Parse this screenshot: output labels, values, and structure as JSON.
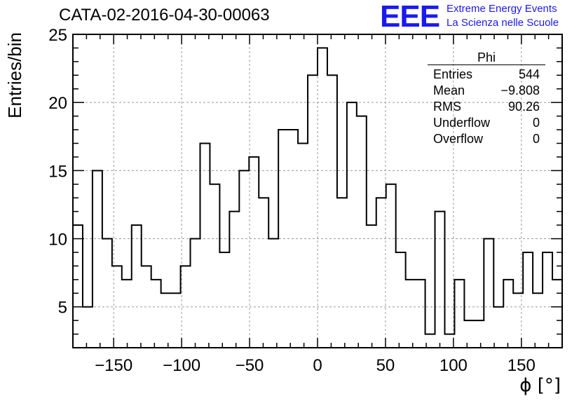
{
  "title": "CATA-02-2016-04-30-00063",
  "logo": {
    "mark": "EEE",
    "line1": "Extreme Energy Events",
    "line2": "La Scienza nelle Scuole",
    "color": "#1a1af0"
  },
  "stats_box": {
    "title": "Phi",
    "rows": [
      {
        "label": "Entries",
        "value": "544"
      },
      {
        "label": "Mean",
        "value": "−9.808"
      },
      {
        "label": "RMS",
        "value": "90.26"
      },
      {
        "label": "Underflow",
        "value": "0"
      },
      {
        "label": "Overflow",
        "value": "0"
      }
    ]
  },
  "chart_data": {
    "type": "histogram",
    "title": "CATA-02-2016-04-30-00063",
    "xlabel": "ϕ [°]",
    "ylabel": "Entries/bin",
    "xlim": [
      -180,
      180
    ],
    "ylim": [
      2,
      25
    ],
    "grid": true,
    "bin_width": 7.2,
    "bin_edges_start": -180,
    "values": [
      11,
      5,
      15,
      10,
      8,
      7,
      11,
      8,
      7,
      6,
      6,
      8,
      10,
      17,
      14,
      9,
      12,
      15,
      16,
      13,
      10,
      18,
      18,
      17,
      22,
      24,
      22,
      13,
      20,
      19,
      11,
      13,
      14,
      9,
      7,
      7,
      3,
      12,
      3,
      7,
      4,
      4,
      10,
      5,
      7,
      6,
      9,
      6,
      9,
      7
    ],
    "xticks": [
      -150,
      -100,
      -50,
      0,
      50,
      100,
      150
    ],
    "xtick_labels": [
      "−150",
      "−100",
      "−50",
      "0",
      "50",
      "100",
      "150"
    ],
    "yticks": [
      5,
      10,
      15,
      20,
      25
    ],
    "ytick_labels": [
      "5",
      "10",
      "15",
      "20",
      "25"
    ]
  }
}
